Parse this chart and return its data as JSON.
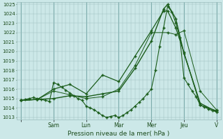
{
  "xlabel": "Pression niveau de la mer( hPa )",
  "bg_color": "#cce8e8",
  "grid_color": "#99bbbb",
  "line_color": "#1a5c1a",
  "ylim": [
    1013,
    1025
  ],
  "yticks": [
    1013,
    1014,
    1015,
    1016,
    1017,
    1018,
    1019,
    1020,
    1021,
    1022,
    1023,
    1024,
    1025
  ],
  "day_positions": [
    0,
    8,
    16,
    24,
    32,
    40,
    48
  ],
  "day_labels": [
    "",
    "Sam",
    "Lun",
    "Mar",
    "Mer",
    "Jeu",
    "V"
  ],
  "series": [
    {
      "x": [
        0,
        1,
        2,
        3,
        4,
        5,
        6,
        7,
        8,
        9,
        10,
        11,
        12,
        13,
        14,
        15,
        16,
        17,
        18,
        19,
        20,
        21,
        22,
        23,
        24,
        25,
        26,
        27,
        28,
        29,
        30,
        31,
        32,
        33,
        34,
        35,
        36,
        37,
        38,
        39,
        40,
        41,
        42,
        43,
        44,
        45,
        46,
        47,
        48
      ],
      "y": [
        1014.8,
        1014.9,
        1015.0,
        1015.1,
        1015.0,
        1014.9,
        1014.8,
        1014.7,
        1016.7,
        1016.5,
        1016.2,
        1015.9,
        1015.6,
        1015.3,
        1015.0,
        1014.8,
        1014.2,
        1014.0,
        1013.8,
        1013.5,
        1013.2,
        1013.0,
        1013.1,
        1013.2,
        1013.0,
        1013.2,
        1013.5,
        1013.8,
        1014.2,
        1014.6,
        1015.0,
        1015.5,
        1016.0,
        1018.0,
        1020.5,
        1022.5,
        1024.8,
        1024.2,
        1023.0,
        1021.5,
        1017.2,
        1016.5,
        1015.8,
        1015.2,
        1014.3,
        1014.1,
        1013.9,
        1013.7,
        1013.6
      ],
      "marker": "+",
      "markersize": 3,
      "linewidth": 0.8
    },
    {
      "x": [
        0,
        4,
        8,
        12,
        16,
        20,
        24,
        28,
        32,
        36,
        38,
        40,
        44,
        48
      ],
      "y": [
        1014.8,
        1014.9,
        1015.8,
        1015.4,
        1015.0,
        1015.2,
        1016.0,
        1018.5,
        1022.0,
        1022.0,
        1021.8,
        1022.2,
        1015.8,
        1013.8
      ],
      "marker": "+",
      "markersize": 3,
      "linewidth": 0.7
    },
    {
      "x": [
        0,
        4,
        8,
        12,
        16,
        20,
        24,
        28,
        32,
        35,
        36,
        38,
        40,
        44,
        48
      ],
      "y": [
        1014.8,
        1014.9,
        1015.0,
        1015.3,
        1015.2,
        1015.5,
        1015.8,
        1018.2,
        1021.1,
        1024.5,
        1025.0,
        1023.5,
        1019.8,
        1014.5,
        1013.6
      ],
      "marker": "+",
      "markersize": 3,
      "linewidth": 1.0
    },
    {
      "x": [
        0,
        4,
        8,
        12,
        16,
        20,
        24,
        28,
        32,
        35,
        36,
        38,
        40,
        44,
        48
      ],
      "y": [
        1014.8,
        1014.9,
        1016.0,
        1016.5,
        1015.5,
        1017.5,
        1016.8,
        1019.5,
        1022.2,
        1024.3,
        1024.3,
        1022.5,
        1019.9,
        1014.3,
        1013.7
      ],
      "marker": "+",
      "markersize": 3,
      "linewidth": 0.9
    }
  ]
}
